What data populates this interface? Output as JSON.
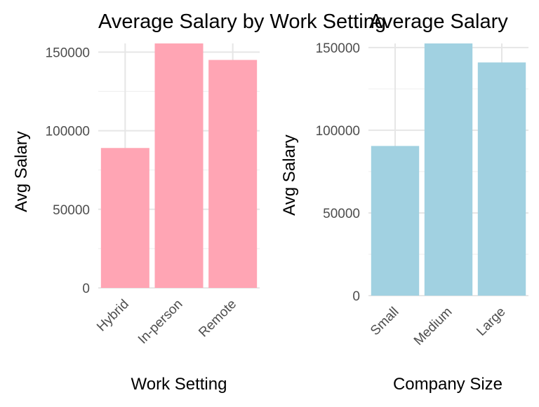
{
  "chart_data": [
    {
      "type": "bar",
      "title": "Average Salary by Work Setting",
      "xlabel": "Work Setting",
      "ylabel": "Avg Salary",
      "categories": [
        "Hybrid",
        "In-person",
        "Remote"
      ],
      "values": [
        89000,
        155500,
        145000
      ],
      "ylim": [
        0,
        155500
      ],
      "yticks": [
        0,
        50000,
        100000,
        150000
      ],
      "ytick_labels": [
        "0",
        "50000",
        "100000",
        "150000"
      ],
      "bar_color": "#FFA5B4",
      "grid": true,
      "legend": "none"
    },
    {
      "type": "bar",
      "title": "Average Salary",
      "xlabel": "Company Size",
      "ylabel": "Avg Salary",
      "categories": [
        "Small",
        "Medium",
        "Large"
      ],
      "values": [
        90500,
        152500,
        141000
      ],
      "ylim": [
        0,
        152500
      ],
      "yticks": [
        0,
        50000,
        100000,
        150000
      ],
      "ytick_labels": [
        "0",
        "50000",
        "100000",
        "150000"
      ],
      "bar_color": "#A1D1E1",
      "grid": true,
      "legend": "none"
    }
  ]
}
